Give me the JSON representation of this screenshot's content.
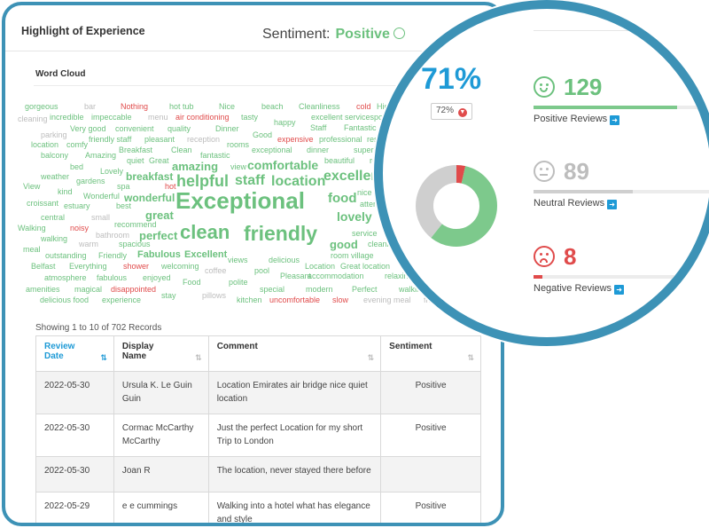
{
  "header": {
    "title": "Highlight of Experience",
    "sentiment_label": "Sentiment:",
    "sentiment_value": "Positive"
  },
  "word_cloud": {
    "label": "Word Cloud",
    "colors": {
      "positive": "#6cc17e",
      "neutral": "#bdbdbd",
      "negative": "#e04b4b"
    },
    "words": [
      {
        "t": "gorgeous",
        "c": "positive"
      },
      {
        "t": "bar",
        "c": "neutral"
      },
      {
        "t": "Nothing",
        "c": "negative"
      },
      {
        "t": "hot tub",
        "c": "positive"
      },
      {
        "t": "Nice",
        "c": "positive"
      },
      {
        "t": "beach",
        "c": "positive"
      },
      {
        "t": "Cleanliness",
        "c": "positive"
      },
      {
        "t": "cold",
        "c": "negative"
      },
      {
        "t": "High",
        "c": "positive"
      },
      {
        "t": "cleaning",
        "c": "neutral"
      },
      {
        "t": "incredible",
        "c": "positive"
      },
      {
        "t": "impeccable",
        "c": "positive"
      },
      {
        "t": "menu",
        "c": "neutral"
      },
      {
        "t": "air conditioning",
        "c": "negative"
      },
      {
        "t": "tasty",
        "c": "positive"
      },
      {
        "t": "excellent servicespo",
        "c": "positive"
      },
      {
        "t": "Very good",
        "c": "positive"
      },
      {
        "t": "convenient",
        "c": "positive"
      },
      {
        "t": "quality",
        "c": "positive"
      },
      {
        "t": "Dinner",
        "c": "positive"
      },
      {
        "t": "happy",
        "c": "positive"
      },
      {
        "t": "parking",
        "c": "neutral"
      },
      {
        "t": "friendly staff",
        "c": "positive"
      },
      {
        "t": "pleasant",
        "c": "positive"
      },
      {
        "t": "reception",
        "c": "neutral"
      },
      {
        "t": "Good",
        "c": "positive"
      },
      {
        "t": "Staff",
        "c": "positive"
      },
      {
        "t": "Fantastic",
        "c": "positive"
      },
      {
        "t": "location",
        "c": "positive"
      },
      {
        "t": "comfy",
        "c": "positive"
      },
      {
        "t": "rooms",
        "c": "positive"
      },
      {
        "t": "expensive",
        "c": "negative"
      },
      {
        "t": "professional",
        "c": "positive"
      },
      {
        "t": "rest",
        "c": "positive"
      },
      {
        "t": "Breakfast",
        "c": "positive"
      },
      {
        "t": "Clean",
        "c": "positive"
      },
      {
        "t": "exceptional",
        "c": "positive"
      },
      {
        "t": "dinner",
        "c": "positive"
      },
      {
        "t": "superb",
        "c": "positive"
      },
      {
        "t": "balcony",
        "c": "positive"
      },
      {
        "t": "Amazing",
        "c": "positive"
      },
      {
        "t": "quiet",
        "c": "positive"
      },
      {
        "t": "Great",
        "c": "positive"
      },
      {
        "t": "fantastic",
        "c": "positive"
      },
      {
        "t": "beautiful",
        "c": "positive"
      },
      {
        "t": "res",
        "c": "positive"
      },
      {
        "t": "bed",
        "c": "positive"
      },
      {
        "t": "view",
        "c": "positive"
      },
      {
        "t": "amazing",
        "c": "positive"
      },
      {
        "t": "comfortable",
        "c": "positive"
      },
      {
        "t": "Lovely",
        "c": "positive"
      },
      {
        "t": "breakfast",
        "c": "positive"
      },
      {
        "t": "excellen",
        "c": "positive"
      },
      {
        "t": "weather",
        "c": "positive"
      },
      {
        "t": "gardens",
        "c": "positive"
      },
      {
        "t": "helpful",
        "c": "positive"
      },
      {
        "t": "staff",
        "c": "positive"
      },
      {
        "t": "location",
        "c": "positive"
      },
      {
        "t": "View",
        "c": "positive"
      },
      {
        "t": "spa",
        "c": "positive"
      },
      {
        "t": "hot",
        "c": "negative"
      },
      {
        "t": "kind",
        "c": "positive"
      },
      {
        "t": "Wonderful",
        "c": "positive"
      },
      {
        "t": "wonderful",
        "c": "positive"
      },
      {
        "t": "food",
        "c": "positive"
      },
      {
        "t": "nice",
        "c": "positive"
      },
      {
        "t": "croissant",
        "c": "positive"
      },
      {
        "t": "estuary",
        "c": "positive"
      },
      {
        "t": "best",
        "c": "positive"
      },
      {
        "t": "Exceptional",
        "c": "positive"
      },
      {
        "t": "atten",
        "c": "positive"
      },
      {
        "t": "central",
        "c": "positive"
      },
      {
        "t": "small",
        "c": "neutral"
      },
      {
        "t": "great",
        "c": "positive"
      },
      {
        "t": "lovely",
        "c": "positive"
      },
      {
        "t": "recommend",
        "c": "positive"
      },
      {
        "t": "Walking",
        "c": "positive"
      },
      {
        "t": "noisy",
        "c": "negative"
      },
      {
        "t": "bathroom",
        "c": "neutral"
      },
      {
        "t": "perfect",
        "c": "positive"
      },
      {
        "t": "clean",
        "c": "positive"
      },
      {
        "t": "friendly",
        "c": "positive"
      },
      {
        "t": "service",
        "c": "positive"
      },
      {
        "t": "g",
        "c": "positive"
      },
      {
        "t": "walking",
        "c": "positive"
      },
      {
        "t": "warm",
        "c": "neutral"
      },
      {
        "t": "spacious",
        "c": "positive"
      },
      {
        "t": "good",
        "c": "positive"
      },
      {
        "t": "cleanin",
        "c": "positive"
      },
      {
        "t": "meal",
        "c": "positive"
      },
      {
        "t": "outstanding",
        "c": "positive"
      },
      {
        "t": "Friendly",
        "c": "positive"
      },
      {
        "t": "Fabulous",
        "c": "positive"
      },
      {
        "t": "Excellent",
        "c": "positive"
      },
      {
        "t": "room village",
        "c": "positive"
      },
      {
        "t": "Belfast",
        "c": "positive"
      },
      {
        "t": "Everything",
        "c": "positive"
      },
      {
        "t": "shower",
        "c": "negative"
      },
      {
        "t": "welcoming",
        "c": "positive"
      },
      {
        "t": "views",
        "c": "positive"
      },
      {
        "t": "delicious",
        "c": "positive"
      },
      {
        "t": "Location",
        "c": "positive"
      },
      {
        "t": "Great location",
        "c": "positive"
      },
      {
        "t": "coffee",
        "c": "neutral"
      },
      {
        "t": "pool",
        "c": "positive"
      },
      {
        "t": "atmosphere",
        "c": "positive"
      },
      {
        "t": "fabulous",
        "c": "positive"
      },
      {
        "t": "enjoyed",
        "c": "positive"
      },
      {
        "t": "Pleasant",
        "c": "positive"
      },
      {
        "t": "accommodation",
        "c": "positive"
      },
      {
        "t": "relaxing",
        "c": "positive"
      },
      {
        "t": "amenities",
        "c": "positive"
      },
      {
        "t": "magical",
        "c": "positive"
      },
      {
        "t": "disappointed",
        "c": "negative"
      },
      {
        "t": "Food",
        "c": "positive"
      },
      {
        "t": "polite",
        "c": "positive"
      },
      {
        "t": "special",
        "c": "positive"
      },
      {
        "t": "modern",
        "c": "positive"
      },
      {
        "t": "Perfect",
        "c": "positive"
      },
      {
        "t": "walking dista",
        "c": "positive"
      },
      {
        "t": "delicious food",
        "c": "positive"
      },
      {
        "t": "experience",
        "c": "positive"
      },
      {
        "t": "stay",
        "c": "positive"
      },
      {
        "t": "pillows",
        "c": "neutral"
      },
      {
        "t": "kitchen",
        "c": "positive"
      },
      {
        "t": "uncomfortable",
        "c": "negative"
      },
      {
        "t": "slow",
        "c": "negative"
      },
      {
        "t": "evening meal",
        "c": "neutral"
      },
      {
        "t": "fridg",
        "c": "neutral"
      }
    ]
  },
  "table": {
    "records_info": "Showing 1 to 10 of 702 Records",
    "columns": [
      {
        "line1": "Review",
        "line2": "Date"
      },
      {
        "line1": "Display",
        "line2": "Name"
      },
      {
        "line1": "Comment",
        "line2": ""
      },
      {
        "line1": "Sentiment",
        "line2": ""
      }
    ],
    "rows": [
      {
        "date": "2022-05-30",
        "name": "Ursula K. Le Guin Guin",
        "comment": "Location Emirates air bridge nice quiet location",
        "sentiment": "Positive"
      },
      {
        "date": "2022-05-30",
        "name": "Cormac McCarthy McCarthy",
        "comment": "Just the perfect Location for my short Trip to London",
        "sentiment": "Positive"
      },
      {
        "date": "2022-05-30",
        "name": "Joan R",
        "comment": "The location, never stayed there before",
        "sentiment": ""
      },
      {
        "date": "2022-05-29",
        "name": "e e cummings",
        "comment": "Walking into a hotel what has elegance and style",
        "sentiment": "Positive"
      }
    ]
  },
  "summary": {
    "percent": "71%",
    "previous_percent": "72%",
    "donut": {
      "positive": 129,
      "neutral": 89,
      "negative": 8,
      "colors": {
        "positive": "#7dc98c",
        "neutral": "#cfcfcf",
        "negative": "#e04b4b"
      }
    },
    "positive": {
      "count": "129",
      "label": "Positive Reviews",
      "fraction": 0.81
    },
    "neutral": {
      "count": "89",
      "label": "Neutral Reviews",
      "fraction": 0.56
    },
    "negative": {
      "count": "8",
      "label": "Negative Reviews",
      "fraction": 0.05
    }
  }
}
